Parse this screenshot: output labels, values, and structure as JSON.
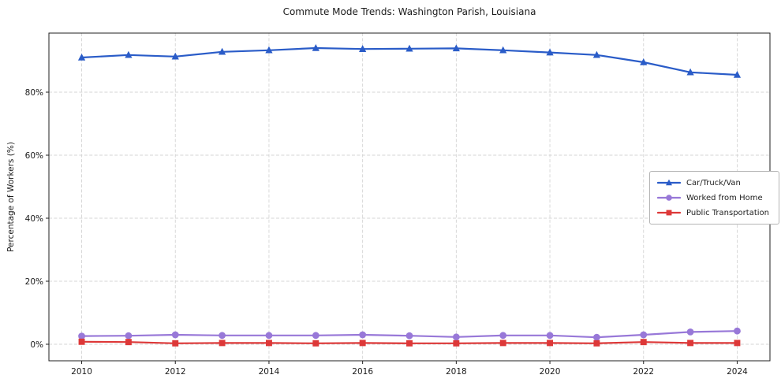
{
  "title": "Commute Mode Trends: Washington Parish, Louisiana",
  "chart_data": {
    "type": "line",
    "title": "Commute Mode Trends: Washington Parish, Louisiana",
    "xlabel": "",
    "ylabel": "Percentage of Workers (%)",
    "x": [
      2010,
      2011,
      2012,
      2013,
      2014,
      2015,
      2016,
      2017,
      2018,
      2019,
      2020,
      2021,
      2022,
      2023,
      2024
    ],
    "series": [
      {
        "name": "Car/Truck/Van",
        "marker": "triangle",
        "color": "#2a5cc8",
        "values": [
          91.0,
          91.8,
          91.3,
          92.8,
          93.3,
          94.0,
          93.7,
          93.8,
          93.9,
          93.3,
          92.6,
          91.8,
          89.5,
          86.3,
          85.5
        ]
      },
      {
        "name": "Worked from Home",
        "marker": "circle",
        "color": "#9878d8",
        "values": [
          2.6,
          2.7,
          3.0,
          2.8,
          2.8,
          2.8,
          3.0,
          2.7,
          2.3,
          2.8,
          2.8,
          2.2,
          3.0,
          3.9,
          4.2
        ]
      },
      {
        "name": "Public Transportation",
        "marker": "square",
        "color": "#dd3838",
        "values": [
          0.8,
          0.7,
          0.3,
          0.4,
          0.4,
          0.3,
          0.4,
          0.3,
          0.3,
          0.4,
          0.4,
          0.3,
          0.7,
          0.4,
          0.4
        ]
      }
    ],
    "xlim": [
      2009.3,
      2024.7
    ],
    "ylim": [
      -5.25,
      98.75
    ],
    "xticks": [
      2010,
      2012,
      2014,
      2016,
      2018,
      2020,
      2022,
      2024
    ],
    "yticks": [
      0,
      20,
      40,
      60,
      80
    ],
    "ytick_suffix": "%",
    "grid": true,
    "grid_style": "dashed",
    "legend_position": "center right"
  }
}
